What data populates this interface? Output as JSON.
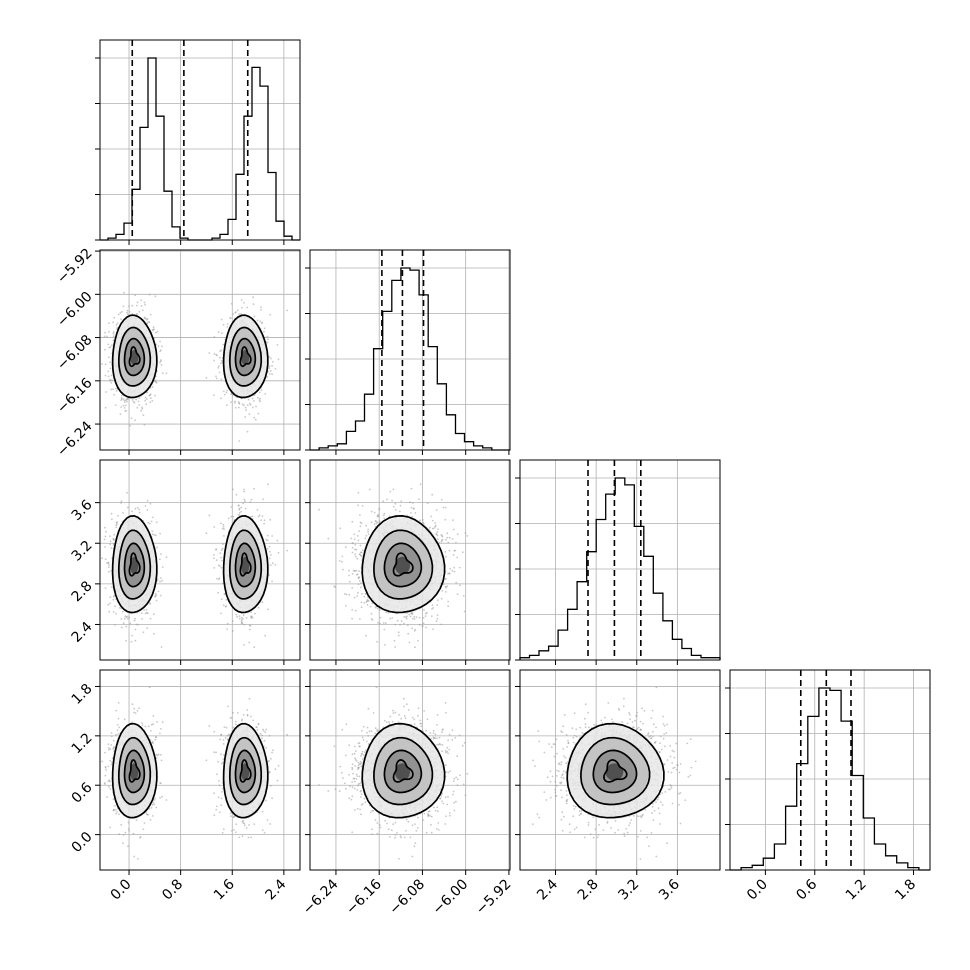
{
  "chart_data": {
    "type": "corner",
    "parameters": 4,
    "grid": true,
    "colors": {
      "hist": "#000000",
      "scatter": "#9a9a9a",
      "contour": "#000000",
      "quantile": "#000000"
    },
    "ranges": [
      [
        -0.45,
        2.65
      ],
      [
        -6.288,
        -5.918
      ],
      [
        2.05,
        4.02
      ],
      [
        -0.43,
        2.0
      ]
    ],
    "ticks": [
      [
        "0.0",
        "0.8",
        "1.6",
        "2.4"
      ],
      [
        "−6.24",
        "−6.16",
        "−6.08",
        "−6.00",
        "−5.92"
      ],
      [
        "2.4",
        "2.8",
        "3.2",
        "3.6"
      ],
      [
        "0.0",
        "0.6",
        "1.2",
        "1.8"
      ]
    ],
    "tick_values": [
      [
        0.0,
        0.8,
        1.6,
        2.4
      ],
      [
        -6.24,
        -6.16,
        -6.08,
        -6.0,
        -5.92
      ],
      [
        2.4,
        2.8,
        3.2,
        3.6
      ],
      [
        0.0,
        0.6,
        1.2,
        1.8
      ]
    ],
    "quantiles": [
      [
        0.05,
        0.85,
        1.84
      ],
      [
        -6.155,
        -6.117,
        -6.078
      ],
      [
        2.72,
        2.98,
        3.24
      ],
      [
        0.43,
        0.74,
        1.04
      ]
    ],
    "histograms": [
      {
        "edges_range": [
          -0.45,
          2.65
        ],
        "counts": [
          0,
          1,
          3,
          9,
          27,
          60,
          97,
          66,
          26,
          7,
          1,
          0,
          0,
          0,
          1,
          3,
          11,
          35,
          66,
          92,
          82,
          36,
          10,
          2,
          0
        ]
      },
      {
        "edges_range": [
          -6.288,
          -5.918
        ],
        "counts": [
          0,
          1,
          2,
          3,
          9,
          14,
          27,
          49,
          67,
          82,
          88,
          87,
          75,
          50,
          32,
          17,
          8,
          4,
          2,
          1,
          0,
          0
        ]
      },
      {
        "edges_range": [
          2.05,
          4.02
        ],
        "counts": [
          1,
          2,
          4,
          6,
          13,
          22,
          34,
          47,
          61,
          72,
          79,
          76,
          58,
          45,
          29,
          17,
          9,
          5,
          2,
          1,
          1
        ]
      },
      {
        "edges_range": [
          -0.43,
          2.0
        ],
        "counts": [
          0,
          1,
          2,
          5,
          11,
          27,
          45,
          65,
          77,
          76,
          63,
          40,
          22,
          11,
          6,
          3,
          1,
          0
        ]
      }
    ],
    "clusters": {
      "x0_modes": [
        0.08,
        1.8
      ],
      "x0_sd": 0.18,
      "means": [
        -6.117,
        2.98,
        0.76
      ],
      "sds": [
        0.04,
        0.25,
        0.3
      ]
    }
  }
}
